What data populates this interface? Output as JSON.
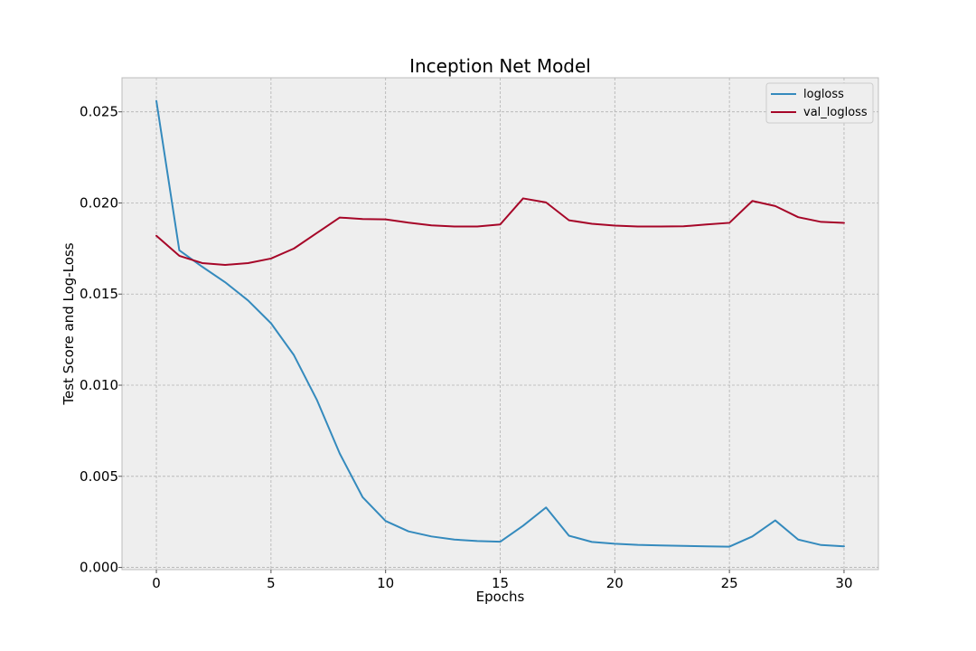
{
  "chart_data": {
    "type": "line",
    "title": "Inception Net Model",
    "xlabel": "Epochs",
    "ylabel": "Test Score and Log-Loss",
    "xlim": [
      -1.5,
      31.5
    ],
    "ylim": [
      -0.00012,
      0.02687
    ],
    "xticks": [
      0,
      5,
      10,
      15,
      20,
      25,
      30
    ],
    "yticks": [
      0.0,
      0.005,
      0.01,
      0.015,
      0.02,
      0.025
    ],
    "ytick_labels": [
      "0.000",
      "0.005",
      "0.010",
      "0.015",
      "0.020",
      "0.025"
    ],
    "grid": true,
    "legend_position": "top-right",
    "x": [
      0,
      1,
      2,
      3,
      4,
      5,
      6,
      7,
      8,
      9,
      10,
      11,
      12,
      13,
      14,
      15,
      16,
      17,
      18,
      19,
      20,
      21,
      22,
      23,
      24,
      25,
      26,
      27,
      28,
      29,
      30
    ],
    "series": [
      {
        "name": "logloss",
        "color": "#348abd",
        "values": [
          0.0256,
          0.0174,
          0.0165,
          0.01565,
          0.01465,
          0.0134,
          0.01165,
          0.0092,
          0.00625,
          0.00385,
          0.00255,
          0.00198,
          0.0017,
          0.00153,
          0.00145,
          0.00141,
          0.00229,
          0.00329,
          0.00174,
          0.0014,
          0.0013,
          0.00124,
          0.00121,
          0.00118,
          0.00116,
          0.00114,
          0.0017,
          0.00258,
          0.00153,
          0.00123,
          0.00116
        ]
      },
      {
        "name": "val_logloss",
        "color": "#a60628",
        "values": [
          0.0182,
          0.0171,
          0.0167,
          0.0166,
          0.0167,
          0.01695,
          0.0175,
          0.01835,
          0.0192,
          0.01912,
          0.0191,
          0.01892,
          0.01877,
          0.01871,
          0.01871,
          0.01882,
          0.02025,
          0.02003,
          0.01905,
          0.01886,
          0.01876,
          0.01871,
          0.01871,
          0.01872,
          0.01882,
          0.01891,
          0.02011,
          0.01983,
          0.01922,
          0.01896,
          0.01891
        ]
      }
    ]
  }
}
